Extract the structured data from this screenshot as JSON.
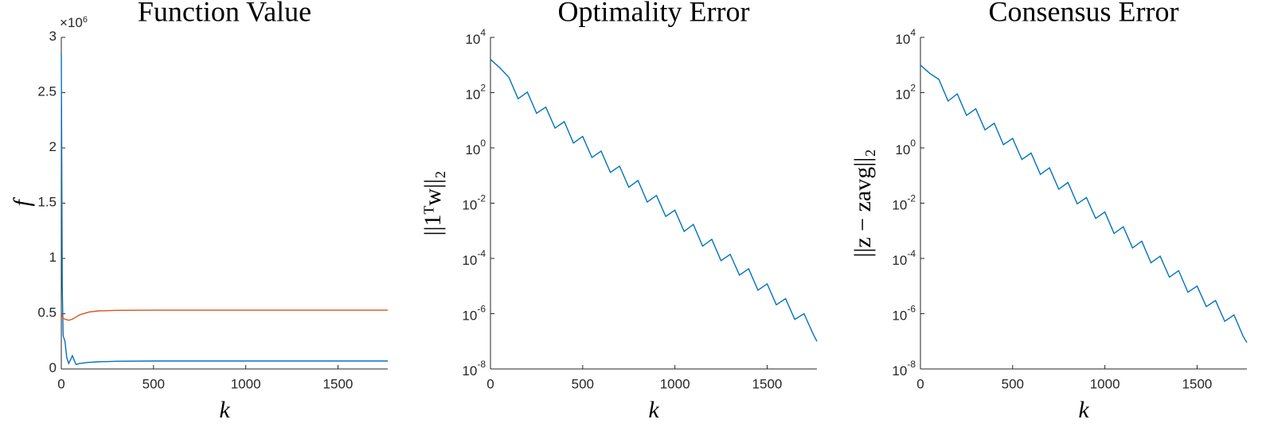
{
  "chart_data": [
    {
      "type": "line",
      "title": "Function Value",
      "xlabel": "k",
      "ylabel": "f",
      "y_multiplier": "×10",
      "y_multiplier_exponent": "6",
      "xlim": [
        0,
        1770
      ],
      "xticks": [
        0,
        500,
        1000,
        1500
      ],
      "ylim": [
        0,
        3000000
      ],
      "yticks": [
        {
          "value": 0,
          "label": "0"
        },
        {
          "value": 500000,
          "label": "0.5"
        },
        {
          "value": 1000000,
          "label": "1"
        },
        {
          "value": 1500000,
          "label": "1.5"
        },
        {
          "value": 2000000,
          "label": "2"
        },
        {
          "value": 2500000,
          "label": "2.5"
        },
        {
          "value": 3000000,
          "label": "3"
        }
      ],
      "x": [
        0,
        5,
        10,
        20,
        30,
        40,
        60,
        80,
        100,
        150,
        200,
        300,
        500,
        1000,
        1500,
        1770
      ],
      "series": [
        {
          "color": "#0072bd",
          "values": [
            2850000,
            750000,
            300000,
            250000,
            100000,
            50000,
            120000,
            40000,
            50000,
            60000,
            65000,
            70000,
            72000,
            72000,
            72000,
            72000
          ]
        },
        {
          "color": "#d95319",
          "values": [
            500000,
            480000,
            460000,
            450000,
            445000,
            440000,
            450000,
            470000,
            490000,
            515000,
            525000,
            530000,
            532000,
            532000,
            532000,
            532000
          ]
        }
      ]
    },
    {
      "type": "line",
      "log_y": true,
      "title": "Optimality Error",
      "xlabel": "k",
      "ylabel": "||1ᵀw||₂",
      "xlim": [
        0,
        1770
      ],
      "xticks": [
        0,
        500,
        1000,
        1500
      ],
      "ylim": [
        1e-08,
        10000
      ],
      "yticks": [
        {
          "value": 1e-08,
          "label": "10",
          "exponent": "-8"
        },
        {
          "value": 1e-06,
          "label": "10",
          "exponent": "-6"
        },
        {
          "value": 0.0001,
          "label": "10",
          "exponent": "-4"
        },
        {
          "value": 0.01,
          "label": "10",
          "exponent": "-2"
        },
        {
          "value": 1,
          "label": "10",
          "exponent": "0"
        },
        {
          "value": 100,
          "label": "10",
          "exponent": "2"
        },
        {
          "value": 10000,
          "label": "10",
          "exponent": "4"
        }
      ],
      "x": [
        0,
        50,
        100,
        150,
        200,
        250,
        300,
        350,
        400,
        450,
        500,
        550,
        600,
        650,
        700,
        750,
        800,
        850,
        900,
        950,
        1000,
        1050,
        1100,
        1150,
        1200,
        1250,
        1300,
        1350,
        1400,
        1450,
        1500,
        1550,
        1600,
        1650,
        1700,
        1750,
        1770
      ],
      "series": [
        {
          "color": "#0072bd",
          "values": [
            1600,
            800,
            355,
            60,
            105,
            18,
            30,
            5.2,
            8.9,
            1.5,
            2.6,
            0.45,
            0.76,
            0.13,
            0.22,
            0.038,
            0.066,
            0.011,
            0.019,
            0.0033,
            0.0056,
            0.00095,
            0.0017,
            0.00028,
            0.00049,
            8.3e-05,
            0.00014,
            2.5e-05,
            4.2e-05,
            7.1e-06,
            1.2e-05,
            2.1e-06,
            3.5e-06,
            6.2e-07,
            1e-06,
            1.8e-07,
            1e-07
          ]
        }
      ]
    },
    {
      "type": "line",
      "log_y": true,
      "title": "Consensus Error",
      "xlabel": "k",
      "ylabel": "||z − zavg||₂",
      "xlim": [
        0,
        1770
      ],
      "xticks": [
        0,
        500,
        1000,
        1500
      ],
      "ylim": [
        1e-08,
        10000
      ],
      "yticks": [
        {
          "value": 1e-08,
          "label": "10",
          "exponent": "-8"
        },
        {
          "value": 1e-06,
          "label": "10",
          "exponent": "-6"
        },
        {
          "value": 0.0001,
          "label": "10",
          "exponent": "-4"
        },
        {
          "value": 0.01,
          "label": "10",
          "exponent": "-2"
        },
        {
          "value": 1,
          "label": "10",
          "exponent": "0"
        },
        {
          "value": 100,
          "label": "10",
          "exponent": "2"
        },
        {
          "value": 10000,
          "label": "10",
          "exponent": "4"
        }
      ],
      "x": [
        0,
        50,
        100,
        150,
        200,
        250,
        300,
        350,
        400,
        450,
        500,
        550,
        600,
        650,
        700,
        750,
        800,
        850,
        900,
        950,
        1000,
        1050,
        1100,
        1150,
        1200,
        1250,
        1300,
        1350,
        1400,
        1450,
        1500,
        1550,
        1600,
        1650,
        1700,
        1750,
        1770
      ],
      "series": [
        {
          "color": "#0072bd",
          "values": [
            1000,
            500,
            300,
            50,
            90,
            15,
            26,
            4.5,
            7.8,
            1.3,
            2.2,
            0.38,
            0.65,
            0.11,
            0.19,
            0.032,
            0.056,
            0.0095,
            0.016,
            0.0028,
            0.0048,
            0.0008,
            0.0014,
            0.00024,
            0.00042,
            7e-05,
            0.00012,
            2.1e-05,
            3.6e-05,
            6e-06,
            1e-05,
            1.8e-06,
            3e-06,
            5.3e-07,
            9e-07,
            1.5e-07,
            9e-08
          ]
        }
      ]
    }
  ]
}
